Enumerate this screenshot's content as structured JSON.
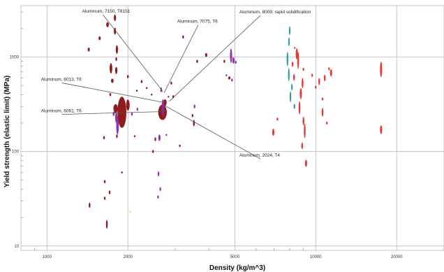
{
  "chart_data": {
    "type": "scatter",
    "title": "",
    "xlabel": "Density (kg/m^3)",
    "ylabel": "Yield strength (elastic limit) (MPa)",
    "x_scale": "log",
    "y_scale": "log",
    "xlim": [
      800,
      30000
    ],
    "ylim": [
      9,
      3500
    ],
    "grid": true,
    "x_ticks": [
      {
        "value": 1000,
        "label": "1000"
      },
      {
        "value": 2000,
        "label": "2000"
      },
      {
        "value": 5000,
        "label": "5000"
      },
      {
        "value": 10000,
        "label": "10000"
      },
      {
        "value": 20000,
        "label": "20000"
      }
    ],
    "y_ticks": [
      {
        "value": 10,
        "label": "10"
      },
      {
        "value": 100,
        "label": "100"
      },
      {
        "value": 1000,
        "label": "1000"
      }
    ],
    "colors": {
      "dark_red": "#8b1010",
      "purple": "#8a2aa8",
      "teal": "#2a9a9a",
      "red": "#e03030",
      "yellow": "#d8e050",
      "grid": "#b8b8b8",
      "annotation_line": "#555555"
    },
    "ellipse_series": [
      {
        "color": "#8b1010",
        "points": [
          [
            1800,
            285,
            0.0082,
            0.046
          ],
          [
            1900,
            260,
            0.0165,
            0.165
          ],
          [
            2690,
            260,
            0.016,
            0.081
          ],
          [
            2000,
            310,
            0.0066,
            0.058
          ],
          [
            2750,
            330,
            0.0057,
            0.035
          ],
          [
            1750,
            560,
            0.0049,
            0.023
          ],
          [
            1730,
            760,
            0.0049,
            0.055
          ],
          [
            1810,
            720,
            0.0041,
            0.038
          ],
          [
            1820,
            1200,
            0.0041,
            0.046
          ],
          [
            1570,
            1580,
            0.0041,
            0.021
          ],
          [
            1790,
            1880,
            0.0041,
            0.037
          ],
          [
            1680,
            2200,
            0.0049,
            0.027
          ],
          [
            1790,
            2600,
            0.0041,
            0.035
          ],
          [
            1810,
            950,
            0.0033,
            0.02
          ],
          [
            2000,
            620,
            0.0033,
            0.016
          ],
          [
            2250,
            550,
            0.0033,
            0.016
          ],
          [
            1720,
            400,
            0.0033,
            0.016
          ],
          [
            1630,
            140,
            0.0025,
            0.017
          ],
          [
            1820,
            145,
            0.0025,
            0.02
          ],
          [
            2480,
            100,
            0.0025,
            0.016
          ],
          [
            2530,
            135,
            0.0025,
            0.02
          ],
          [
            1640,
            48,
            0.0033,
            0.016
          ],
          [
            1710,
            37,
            0.0033,
            0.02
          ],
          [
            1640,
            32,
            0.0025,
            0.017
          ],
          [
            1440,
            27,
            0.0033,
            0.027
          ],
          [
            1670,
            17,
            0.0033,
            0.046
          ],
          [
            1900,
            60,
            0.0025,
            0.01
          ],
          [
            2120,
            145,
            0.0025,
            0.01
          ],
          [
            3120,
            115,
            0.0025,
            0.012
          ],
          [
            3520,
            200,
            0.0033,
            0.035
          ],
          [
            3480,
            240,
            0.0025,
            0.017
          ],
          [
            3620,
            900,
            0.0033,
            0.016
          ],
          [
            3910,
            1050,
            0.0041,
            0.021
          ],
          [
            4570,
            900,
            0.0025,
            0.016
          ],
          [
            4770,
            600,
            0.0041,
            0.016
          ],
          [
            3210,
            1630,
            0.0025,
            0.017
          ],
          [
            2900,
            530,
            0.0025,
            0.016
          ],
          [
            2950,
            380,
            0.0025,
            0.016
          ],
          [
            2450,
            400,
            0.0025,
            0.01
          ],
          [
            2160,
            440,
            0.0025,
            0.01
          ],
          [
            1430,
            1200,
            0.0041,
            0.021
          ],
          [
            2350,
            470,
            0.0025,
            0.01
          ]
        ]
      },
      {
        "color": "#8a2aa8",
        "points": [
          [
            1830,
            190,
            0.0049,
            0.1
          ],
          [
            1810,
            230,
            0.0041,
            0.058
          ],
          [
            2700,
            290,
            0.0049,
            0.092
          ],
          [
            2660,
            450,
            0.0033,
            0.027
          ],
          [
            2620,
            140,
            0.0041,
            0.035
          ],
          [
            2600,
            58,
            0.0025,
            0.027
          ],
          [
            2640,
            40,
            0.0025,
            0.021
          ],
          [
            2590,
            33,
            0.0025,
            0.017
          ],
          [
            3540,
            300,
            0.0025,
            0.021
          ],
          [
            4840,
            1030,
            0.0041,
            0.076
          ],
          [
            4940,
            920,
            0.0041,
            0.035
          ],
          [
            5040,
            880,
            0.0025,
            0.016
          ],
          [
            4650,
            640,
            0.0025,
            0.01
          ],
          [
            4880,
            570,
            0.0025,
            0.016
          ],
          [
            2070,
            250,
            0.0025,
            0.02
          ],
          [
            2170,
            280,
            0.0025,
            0.017
          ],
          [
            2780,
            150,
            0.0025,
            0.01
          ],
          [
            1770,
            250,
            0.0033,
            0.023
          ],
          [
            2830,
            380,
            0.0025,
            0.01
          ]
        ]
      },
      {
        "color": "#2a9a9a",
        "points": [
          [
            7850,
            950,
            0.0033,
            0.077
          ],
          [
            7950,
            1450,
            0.0025,
            0.046
          ],
          [
            7940,
            650,
            0.0025,
            0.069
          ],
          [
            8050,
            380,
            0.0025,
            0.058
          ],
          [
            8150,
            480,
            0.0025,
            0.035
          ],
          [
            8330,
            300,
            0.0025,
            0.027
          ],
          [
            8000,
            1900,
            0.0025,
            0.046
          ]
        ]
      },
      {
        "color": "#e03030",
        "points": [
          [
            8500,
            1080,
            0.0041,
            0.058
          ],
          [
            8600,
            920,
            0.0033,
            0.092
          ],
          [
            8930,
            530,
            0.0033,
            0.055
          ],
          [
            8800,
            410,
            0.0041,
            0.058
          ],
          [
            8300,
            610,
            0.0033,
            0.035
          ],
          [
            8700,
            290,
            0.0033,
            0.069
          ],
          [
            9000,
            210,
            0.0033,
            0.046
          ],
          [
            9100,
            165,
            0.0033,
            0.076
          ],
          [
            9200,
            75,
            0.0041,
            0.038
          ],
          [
            8900,
            115,
            0.0033,
            0.035
          ],
          [
            10300,
            550,
            0.0033,
            0.038
          ],
          [
            10800,
            600,
            0.0033,
            0.035
          ],
          [
            11400,
            680,
            0.0041,
            0.038
          ],
          [
            10600,
            260,
            0.0033,
            0.046
          ],
          [
            6950,
            160,
            0.0041,
            0.038
          ],
          [
            7200,
            220,
            0.0033,
            0.016
          ],
          [
            8200,
            840,
            0.0025,
            0.027
          ],
          [
            8350,
            1250,
            0.0025,
            0.01
          ],
          [
            10000,
            480,
            0.0025,
            0.016
          ],
          [
            10600,
            360,
            0.0025,
            0.016
          ],
          [
            17500,
            740,
            0.0041,
            0.082
          ],
          [
            17500,
            170,
            0.0041,
            0.046
          ],
          [
            9700,
            640,
            0.0025,
            0.016
          ],
          [
            11200,
            750,
            0.0025,
            0.016
          ],
          [
            9000,
            740,
            0.0025,
            0.016
          ],
          [
            11000,
            200,
            0.0025,
            0.016
          ]
        ]
      },
      {
        "color": "#d8e050",
        "points": [
          [
            2040,
            23,
            0.0025,
            0.01
          ]
        ]
      }
    ],
    "annotations": [
      {
        "text": "Aluminum, 7150, T6151",
        "label_x": 1350,
        "label_y": 2950,
        "pt_x": 2700,
        "pt_y": 430
      },
      {
        "text": "Aluminum, 7075, T6",
        "label_x": 3050,
        "label_y": 2300,
        "pt_x": 2730,
        "pt_y": 420
      },
      {
        "text": "Aluminum, 8009, rapid solidification",
        "label_x": 5200,
        "label_y": 2900,
        "pt_x": 2850,
        "pt_y": 340
      },
      {
        "text": "Aluminum, 6013, T6",
        "label_x": 950,
        "label_y": 560,
        "pt_x": 2730,
        "pt_y": 330
      },
      {
        "text": "Aluminum, 6061, T6",
        "label_x": 950,
        "label_y": 260,
        "pt_x": 2740,
        "pt_y": 265
      },
      {
        "text": "Aluminum, 2024, T4",
        "label_x": 5200,
        "label_y": 88,
        "pt_x": 2750,
        "pt_y": 305
      }
    ]
  }
}
